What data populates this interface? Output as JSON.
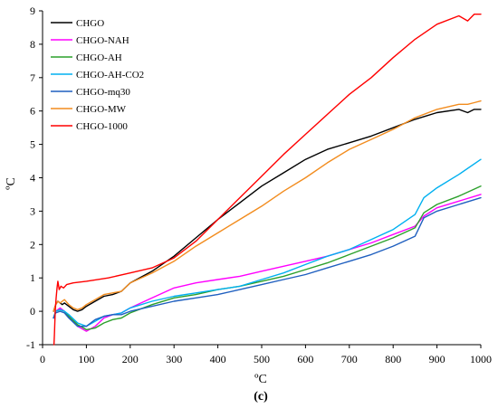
{
  "chart_data": {
    "type": "line",
    "title": "",
    "xlabel": "ºC",
    "ylabel": "ºC",
    "panel_label": "(c)",
    "xlim": [
      0,
      1000
    ],
    "ylim": [
      -1,
      9
    ],
    "x_ticks": [
      0,
      100,
      200,
      300,
      400,
      500,
      600,
      700,
      800,
      900,
      1000
    ],
    "y_ticks": [
      -1,
      0,
      1,
      2,
      3,
      4,
      5,
      6,
      7,
      8,
      9
    ],
    "grid": false,
    "legend_position": "top-left",
    "series": [
      {
        "name": "CHGO",
        "color": "#000000",
        "x": [
          25,
          30,
          35,
          40,
          45,
          50,
          60,
          70,
          80,
          90,
          100,
          120,
          140,
          160,
          180,
          200,
          250,
          300,
          350,
          400,
          450,
          500,
          550,
          600,
          650,
          700,
          750,
          800,
          850,
          900,
          950,
          970,
          985,
          1000
        ],
        "y": [
          0.0,
          0.2,
          0.3,
          0.25,
          0.2,
          0.25,
          0.15,
          0.05,
          0.0,
          0.05,
          0.15,
          0.3,
          0.45,
          0.5,
          0.6,
          0.85,
          1.2,
          1.65,
          2.2,
          2.75,
          3.25,
          3.75,
          4.15,
          4.55,
          4.85,
          5.05,
          5.25,
          5.5,
          5.75,
          5.95,
          6.05,
          5.95,
          6.05,
          6.05
        ]
      },
      {
        "name": "CHGO-NAH",
        "color": "#ff00ff",
        "x": [
          25,
          30,
          40,
          50,
          60,
          80,
          100,
          120,
          140,
          160,
          180,
          200,
          250,
          300,
          350,
          400,
          450,
          500,
          550,
          600,
          650,
          700,
          750,
          800,
          850,
          870,
          900,
          950,
          1000
        ],
        "y": [
          -0.2,
          0.0,
          0.1,
          0.0,
          -0.15,
          -0.45,
          -0.6,
          -0.45,
          -0.2,
          -0.1,
          -0.05,
          0.1,
          0.4,
          0.7,
          0.85,
          0.95,
          1.05,
          1.2,
          1.35,
          1.5,
          1.65,
          1.85,
          2.05,
          2.3,
          2.55,
          2.85,
          3.1,
          3.3,
          3.5
        ]
      },
      {
        "name": "CHGO-AH",
        "color": "#2ca02c",
        "x": [
          25,
          30,
          40,
          50,
          60,
          80,
          100,
          120,
          140,
          160,
          180,
          200,
          250,
          300,
          350,
          400,
          450,
          500,
          550,
          600,
          650,
          700,
          750,
          800,
          850,
          870,
          900,
          950,
          1000
        ],
        "y": [
          -0.2,
          0.0,
          0.05,
          0.0,
          -0.15,
          -0.4,
          -0.55,
          -0.5,
          -0.35,
          -0.25,
          -0.2,
          -0.05,
          0.2,
          0.4,
          0.5,
          0.65,
          0.75,
          0.9,
          1.05,
          1.25,
          1.45,
          1.7,
          1.95,
          2.2,
          2.5,
          2.95,
          3.2,
          3.45,
          3.75
        ]
      },
      {
        "name": "CHGO-AH-CO2",
        "color": "#00b0f0",
        "x": [
          25,
          30,
          40,
          50,
          60,
          80,
          100,
          120,
          140,
          160,
          180,
          200,
          250,
          300,
          350,
          400,
          450,
          500,
          550,
          600,
          650,
          700,
          750,
          800,
          850,
          870,
          900,
          950,
          1000
        ],
        "y": [
          -0.2,
          0.0,
          0.05,
          0.0,
          -0.1,
          -0.35,
          -0.45,
          -0.3,
          -0.15,
          -0.1,
          -0.05,
          0.1,
          0.3,
          0.45,
          0.55,
          0.65,
          0.75,
          0.95,
          1.15,
          1.4,
          1.65,
          1.85,
          2.15,
          2.45,
          2.9,
          3.4,
          3.7,
          4.1,
          4.55
        ]
      },
      {
        "name": "CHGO-mq30",
        "color": "#1f5fbf",
        "x": [
          25,
          30,
          40,
          50,
          60,
          80,
          100,
          120,
          140,
          160,
          180,
          200,
          250,
          300,
          350,
          400,
          450,
          500,
          550,
          600,
          650,
          700,
          750,
          800,
          850,
          870,
          900,
          950,
          1000
        ],
        "y": [
          -0.2,
          -0.05,
          0.0,
          -0.05,
          -0.2,
          -0.45,
          -0.45,
          -0.25,
          -0.15,
          -0.1,
          -0.1,
          0.0,
          0.15,
          0.3,
          0.4,
          0.5,
          0.65,
          0.8,
          0.95,
          1.1,
          1.3,
          1.5,
          1.7,
          1.95,
          2.25,
          2.8,
          3.0,
          3.2,
          3.4
        ]
      },
      {
        "name": "CHGO-MW",
        "color": "#f28c1e",
        "x": [
          25,
          30,
          35,
          40,
          45,
          50,
          60,
          70,
          80,
          90,
          100,
          120,
          140,
          160,
          180,
          200,
          250,
          300,
          350,
          400,
          450,
          500,
          550,
          600,
          650,
          700,
          750,
          800,
          850,
          900,
          950,
          970,
          985,
          1000
        ],
        "y": [
          0.0,
          0.2,
          0.3,
          0.25,
          0.3,
          0.35,
          0.2,
          0.1,
          0.05,
          0.1,
          0.2,
          0.35,
          0.5,
          0.55,
          0.6,
          0.85,
          1.15,
          1.5,
          1.95,
          2.35,
          2.75,
          3.15,
          3.6,
          4.0,
          4.45,
          4.85,
          5.15,
          5.45,
          5.8,
          6.05,
          6.2,
          6.2,
          6.25,
          6.3
        ]
      },
      {
        "name": "CHGO-1000",
        "color": "#ff0000",
        "x": [
          26,
          27,
          29,
          31,
          33,
          35,
          38,
          42,
          48,
          55,
          70,
          100,
          150,
          200,
          250,
          300,
          350,
          400,
          450,
          500,
          550,
          600,
          650,
          700,
          750,
          800,
          850,
          900,
          950,
          970,
          985,
          1000
        ],
        "y": [
          -1.0,
          -0.7,
          0.0,
          0.4,
          0.7,
          0.9,
          0.65,
          0.75,
          0.7,
          0.8,
          0.85,
          0.9,
          1.0,
          1.15,
          1.3,
          1.6,
          2.1,
          2.75,
          3.4,
          4.05,
          4.7,
          5.3,
          5.9,
          6.5,
          7.0,
          7.6,
          8.15,
          8.6,
          8.85,
          8.7,
          8.9,
          8.9
        ]
      }
    ]
  }
}
